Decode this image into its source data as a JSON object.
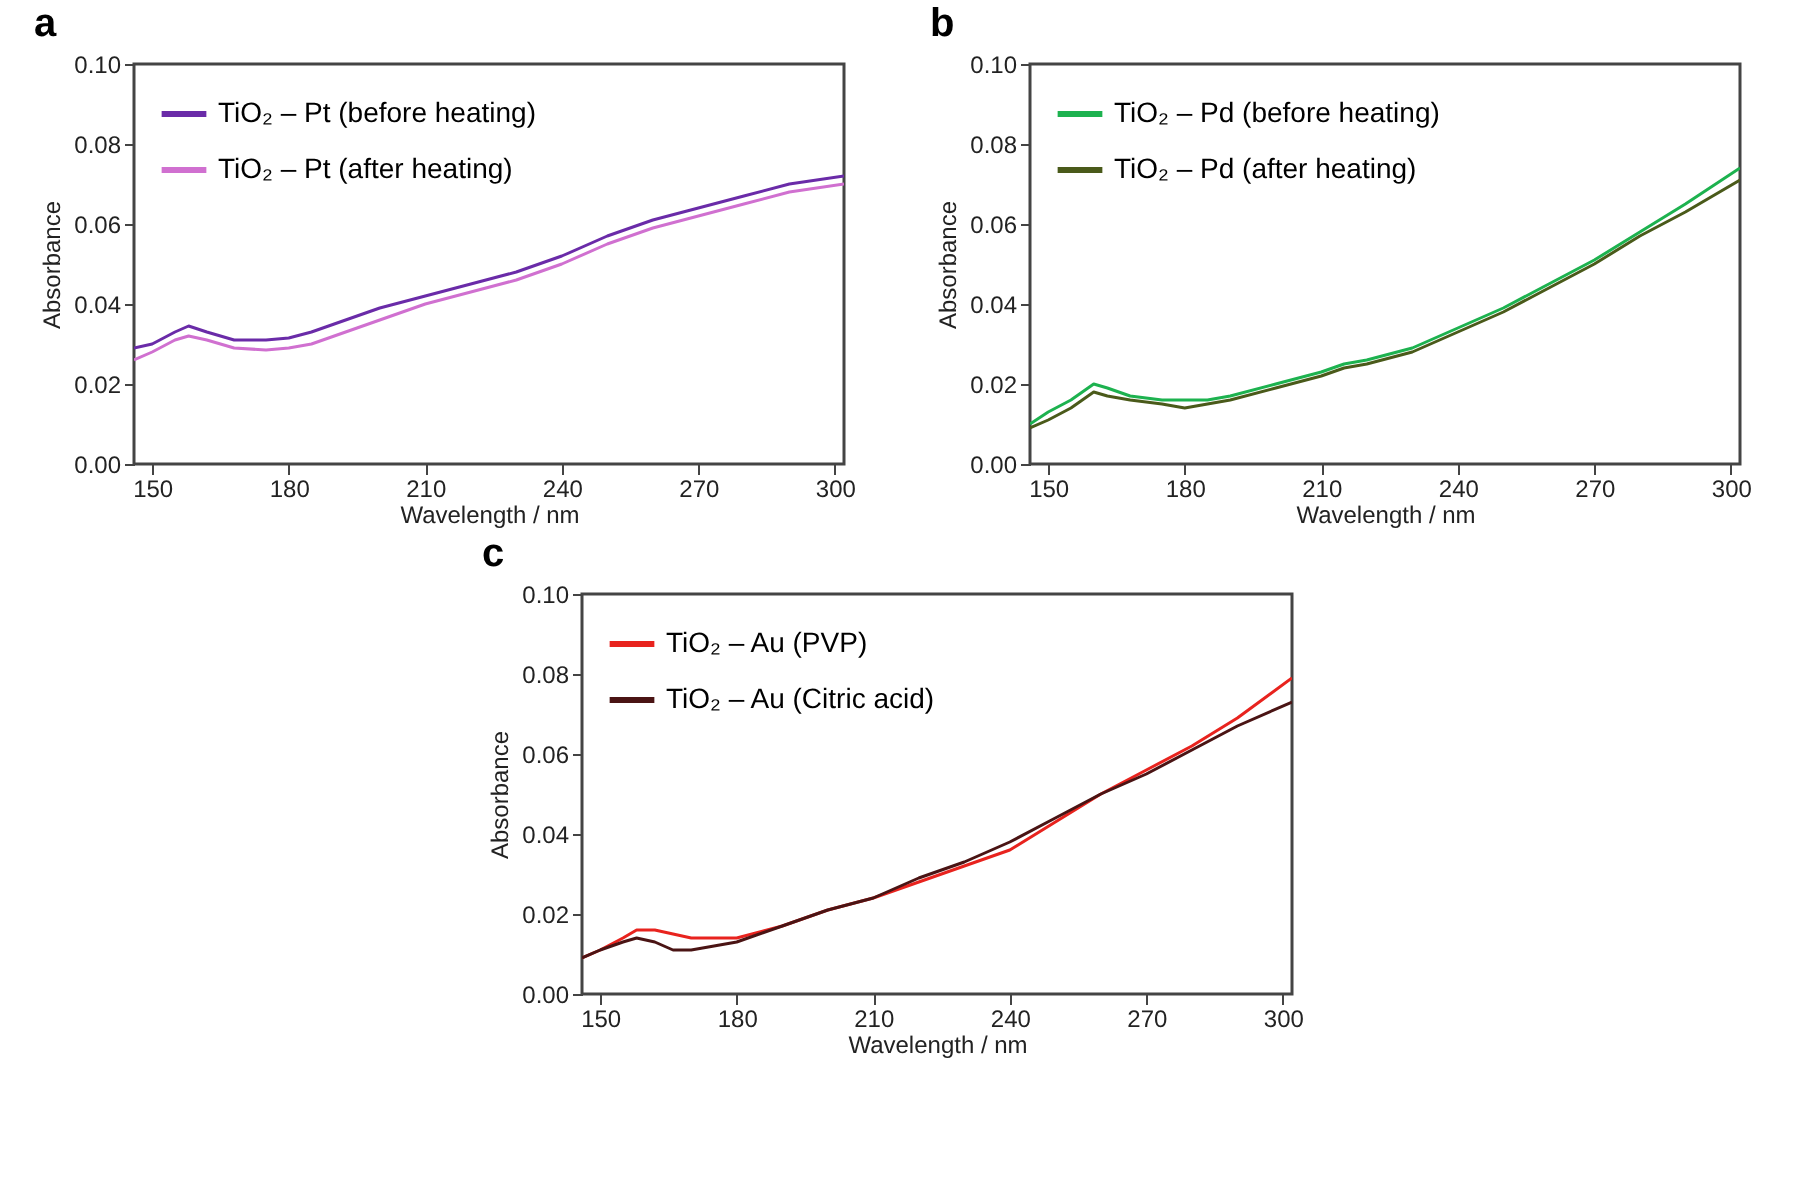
{
  "chart_data": [
    {
      "type": "line",
      "title": "a",
      "xlabel": "Wavelength / nm",
      "ylabel": "Absorbance",
      "xlim": [
        146,
        302
      ],
      "xticks": [
        150,
        180,
        210,
        240,
        270,
        300
      ],
      "ylim": [
        0,
        0.1
      ],
      "yticks": [
        {
          "value": 0,
          "label": "0.00"
        },
        {
          "value": 0.02,
          "label": "0.02"
        },
        {
          "value": 0.04,
          "label": "0.04"
        },
        {
          "value": 0.06,
          "label": "0.06"
        },
        {
          "value": 0.08,
          "label": "0.08"
        },
        {
          "value": 0.1,
          "label": "0.10"
        }
      ],
      "legend": "top left",
      "series": [
        {
          "name": "TiO₂ – Pt (before heating)",
          "color": "#6a2ba8",
          "x": [
            146,
            150,
            155,
            158,
            162,
            168,
            175,
            180,
            185,
            190,
            195,
            200,
            210,
            220,
            230,
            240,
            250,
            260,
            270,
            280,
            290,
            302
          ],
          "values": [
            0.029,
            0.03,
            0.033,
            0.0345,
            0.033,
            0.031,
            0.031,
            0.0315,
            0.033,
            0.035,
            0.037,
            0.039,
            0.042,
            0.045,
            0.048,
            0.052,
            0.057,
            0.061,
            0.064,
            0.067,
            0.07,
            0.072
          ]
        },
        {
          "name": "TiO₂ – Pt (after heating)",
          "color": "#d070d0",
          "x": [
            146,
            150,
            155,
            158,
            162,
            168,
            175,
            180,
            185,
            190,
            195,
            200,
            210,
            220,
            230,
            240,
            250,
            260,
            270,
            280,
            290,
            302
          ],
          "values": [
            0.026,
            0.028,
            0.031,
            0.032,
            0.031,
            0.029,
            0.0285,
            0.029,
            0.03,
            0.032,
            0.034,
            0.036,
            0.04,
            0.043,
            0.046,
            0.05,
            0.055,
            0.059,
            0.062,
            0.065,
            0.068,
            0.07
          ]
        }
      ]
    },
    {
      "type": "line",
      "title": "b",
      "xlabel": "Wavelength / nm",
      "ylabel": "Absorbance",
      "xlim": [
        146,
        302
      ],
      "xticks": [
        150,
        180,
        210,
        240,
        270,
        300
      ],
      "ylim": [
        0,
        0.1
      ],
      "yticks": [
        {
          "value": 0,
          "label": "0.00"
        },
        {
          "value": 0.02,
          "label": "0.02"
        },
        {
          "value": 0.04,
          "label": "0.04"
        },
        {
          "value": 0.06,
          "label": "0.06"
        },
        {
          "value": 0.08,
          "label": "0.08"
        },
        {
          "value": 0.1,
          "label": "0.10"
        }
      ],
      "legend": "top left",
      "series": [
        {
          "name": "TiO₂ – Pd (before heating)",
          "color": "#1db24f",
          "x": [
            146,
            150,
            155,
            160,
            163,
            168,
            175,
            180,
            185,
            190,
            200,
            210,
            215,
            220,
            230,
            240,
            250,
            260,
            270,
            280,
            290,
            302
          ],
          "values": [
            0.01,
            0.013,
            0.016,
            0.02,
            0.019,
            0.017,
            0.016,
            0.016,
            0.016,
            0.017,
            0.02,
            0.023,
            0.025,
            0.026,
            0.029,
            0.034,
            0.039,
            0.045,
            0.051,
            0.058,
            0.065,
            0.074
          ]
        },
        {
          "name": "TiO₂ – Pd (after heating)",
          "color": "#4a5a1a",
          "x": [
            146,
            150,
            155,
            160,
            163,
            168,
            175,
            180,
            185,
            190,
            200,
            210,
            215,
            220,
            230,
            240,
            250,
            260,
            270,
            280,
            290,
            302
          ],
          "values": [
            0.009,
            0.011,
            0.014,
            0.018,
            0.017,
            0.016,
            0.015,
            0.014,
            0.015,
            0.016,
            0.019,
            0.022,
            0.024,
            0.025,
            0.028,
            0.033,
            0.038,
            0.044,
            0.05,
            0.057,
            0.063,
            0.071
          ]
        }
      ]
    },
    {
      "type": "line",
      "title": "c",
      "xlabel": "Wavelength / nm",
      "ylabel": "Absorbance",
      "xlim": [
        146,
        302
      ],
      "xticks": [
        150,
        180,
        210,
        240,
        270,
        300
      ],
      "ylim": [
        0,
        0.1
      ],
      "yticks": [
        {
          "value": 0,
          "label": "0.00"
        },
        {
          "value": 0.02,
          "label": "0.02"
        },
        {
          "value": 0.04,
          "label": "0.04"
        },
        {
          "value": 0.06,
          "label": "0.06"
        },
        {
          "value": 0.08,
          "label": "0.08"
        },
        {
          "value": 0.1,
          "label": "0.10"
        }
      ],
      "legend": "top left",
      "series": [
        {
          "name": "TiO₂ – Au (PVP)",
          "color": "#e8231e",
          "x": [
            146,
            150,
            155,
            158,
            162,
            166,
            170,
            175,
            180,
            190,
            200,
            210,
            220,
            230,
            240,
            250,
            260,
            270,
            280,
            290,
            302
          ],
          "values": [
            0.009,
            0.011,
            0.014,
            0.016,
            0.016,
            0.015,
            0.014,
            0.014,
            0.014,
            0.017,
            0.021,
            0.024,
            0.028,
            0.032,
            0.036,
            0.043,
            0.05,
            0.056,
            0.062,
            0.069,
            0.079
          ]
        },
        {
          "name": "TiO₂ – Au (Citric acid)",
          "color": "#4a1414",
          "x": [
            146,
            150,
            155,
            158,
            162,
            166,
            170,
            175,
            180,
            190,
            200,
            210,
            220,
            230,
            240,
            250,
            260,
            270,
            280,
            290,
            302
          ],
          "values": [
            0.009,
            0.011,
            0.013,
            0.014,
            0.013,
            0.011,
            0.011,
            0.012,
            0.013,
            0.017,
            0.021,
            0.024,
            0.029,
            0.033,
            0.038,
            0.044,
            0.05,
            0.055,
            0.061,
            0.067,
            0.073
          ]
        }
      ]
    }
  ]
}
